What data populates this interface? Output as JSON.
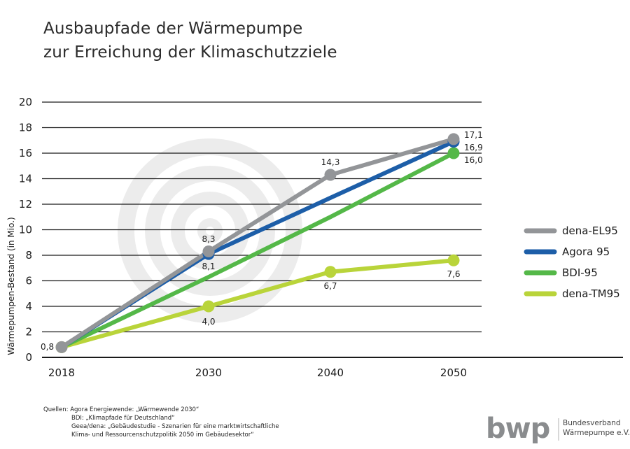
{
  "title": {
    "line1": "Ausbaupfade der Wärmepumpe",
    "line2": "zur Erreichung der Klimaschutzziele"
  },
  "chart_data": {
    "type": "line",
    "title": "Ausbaupfade der Wärmepumpe zur Erreichung der Klimaschutzziele",
    "xlabel": "",
    "ylabel": "Wärmepumpen-Bestand (in Mio.)",
    "x": [
      "2018",
      "2030",
      "2040",
      "2050"
    ],
    "ylim": [
      0,
      20
    ],
    "yticks": [
      0,
      2,
      4,
      6,
      8,
      10,
      12,
      14,
      16,
      18,
      20
    ],
    "grid": true,
    "legend_position": "right",
    "series": [
      {
        "name": "dena-EL95",
        "color": "#939598",
        "values": [
          0.8,
          8.3,
          14.3,
          17.1
        ],
        "labels": [
          "0,8",
          "8,3",
          "14,3",
          "17,1"
        ]
      },
      {
        "name": "Agora 95",
        "color": "#1d5ea8",
        "values": [
          0.8,
          8.1,
          12.5,
          16.9
        ],
        "labels": [
          "",
          "8,1",
          "",
          "16,9"
        ]
      },
      {
        "name": "BDI-95",
        "color": "#54b848",
        "values": [
          0.8,
          6.3,
          11.0,
          16.0
        ],
        "labels": [
          "",
          "",
          "",
          "16,0"
        ]
      },
      {
        "name": "dena-TM95",
        "color": "#b9d43a",
        "values": [
          0.8,
          4.0,
          6.7,
          7.6
        ],
        "labels": [
          "",
          "4,0",
          "6,7",
          "7,6"
        ]
      }
    ]
  },
  "sources": {
    "line1": "Quellen: Agora Energiewende: „Wärmewende 2030“",
    "line2": "BDI: „Klimapfade für Deutschland“",
    "line3": "Geea/dena: „Gebäudestudie - Szenarien für eine marktwirtschaftliche",
    "line4": "Klima- und Ressourcenschutzpolitik 2050 im Gebäudesektor“"
  },
  "logo": {
    "mark": "bwp",
    "name_line1": "Bundesverband",
    "name_line2": "Wärmepumpe e.V."
  }
}
